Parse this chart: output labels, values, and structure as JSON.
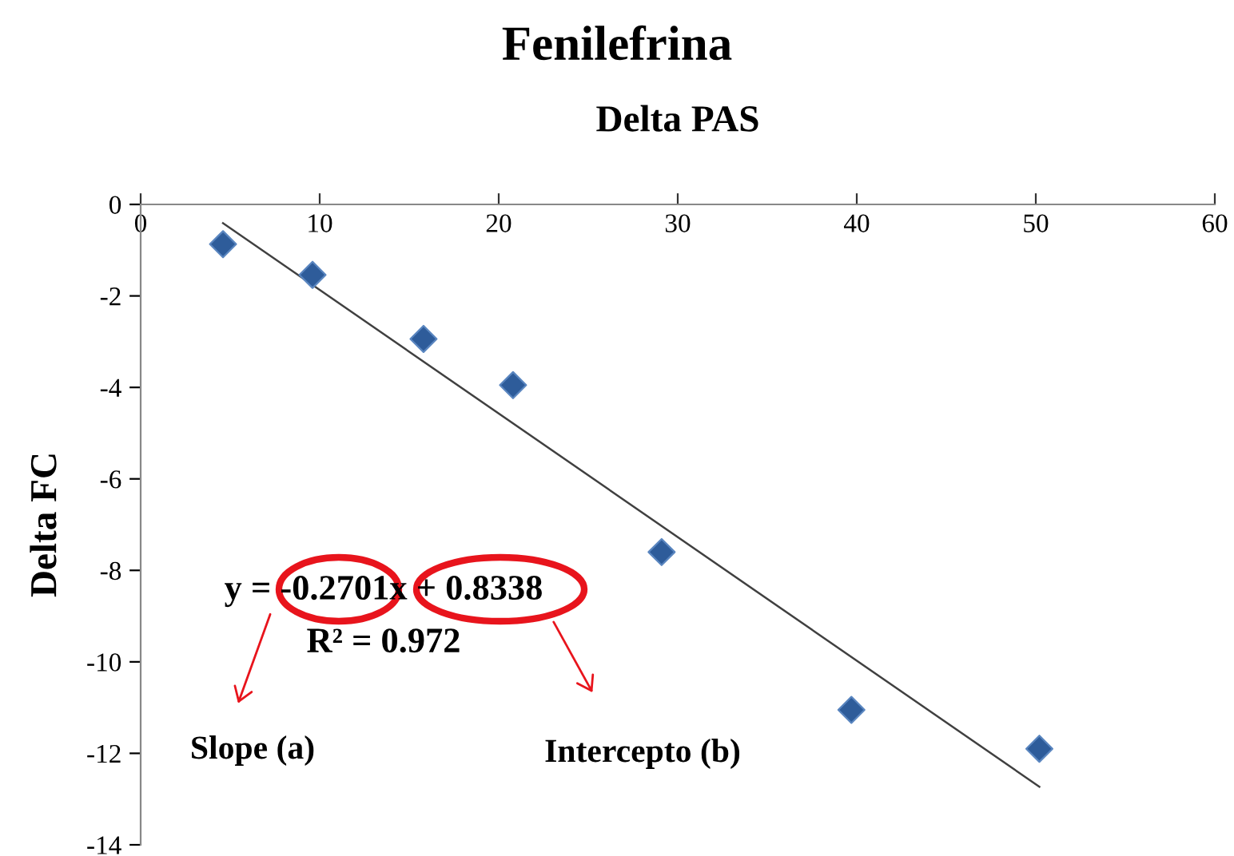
{
  "chart_data": {
    "type": "scatter",
    "title": "Fenilefrina",
    "xlabel": "Delta PAS",
    "ylabel": "Delta FC",
    "xlim": [
      0,
      60
    ],
    "xticks": [
      0,
      10,
      20,
      30,
      40,
      50,
      60
    ],
    "ylim": [
      -14,
      0
    ],
    "yticks": [
      -14,
      -12,
      -10,
      -8,
      -6,
      -4,
      -2,
      0
    ],
    "grid": false,
    "legend": false,
    "marker": "diamond",
    "series": [
      {
        "color": "#2e5c9a",
        "x": [
          4.6,
          9.6,
          15.8,
          20.8,
          29.1,
          39.7,
          50.2
        ],
        "values": [
          -0.87,
          -1.54,
          -2.94,
          -3.95,
          -7.6,
          -11.05,
          -11.9
        ]
      },
      {
        "type": "line",
        "color": "#404040",
        "marker": "none",
        "line_style": "solid",
        "x": [
          4.6,
          50.2
        ],
        "values": [
          -0.41,
          -12.73
        ]
      }
    ],
    "annotations": [
      "y = -0.2701x + 0.8338",
      "R² = 0.972",
      "Slope (a)",
      "Intercepto (b)"
    ]
  }
}
